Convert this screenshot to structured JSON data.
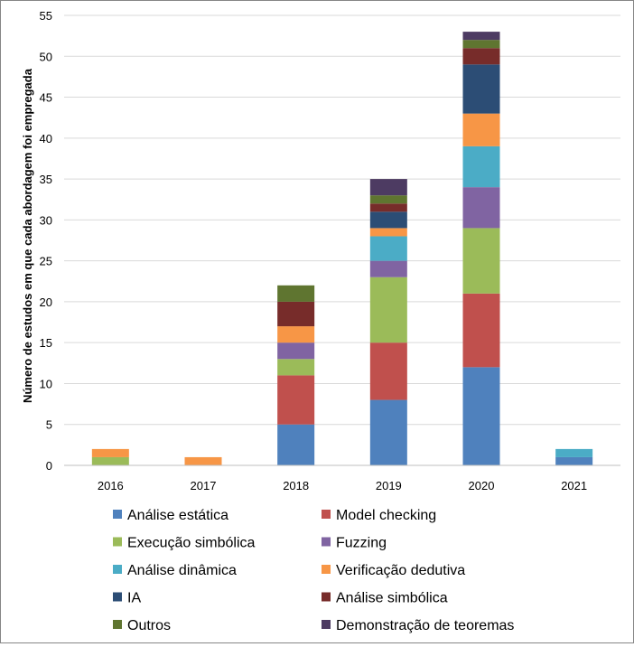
{
  "chart_data": {
    "type": "bar",
    "stacked": true,
    "title": "",
    "xlabel": "",
    "ylabel": "Número de estudos em que cada abordagem foi empregada",
    "categories": [
      "2016",
      "2017",
      "2018",
      "2019",
      "2020",
      "2021"
    ],
    "ylim": [
      0,
      55
    ],
    "yticks": [
      0,
      5,
      10,
      15,
      20,
      25,
      30,
      35,
      40,
      45,
      50,
      55
    ],
    "grid": true,
    "legend_position": "bottom",
    "series": [
      {
        "name": "Análise estática",
        "color": "#4F81BD",
        "values": [
          0,
          0,
          5,
          8,
          12,
          1
        ]
      },
      {
        "name": "Model checking",
        "color": "#C0504D",
        "values": [
          0,
          0,
          6,
          7,
          9,
          0
        ]
      },
      {
        "name": "Execução simbólica",
        "color": "#9BBB59",
        "values": [
          1,
          0,
          2,
          8,
          8,
          0
        ]
      },
      {
        "name": "Fuzzing",
        "color": "#8064A2",
        "values": [
          0,
          0,
          2,
          2,
          5,
          0
        ]
      },
      {
        "name": "Análise dinâmica",
        "color": "#4BACC6",
        "values": [
          0,
          0,
          0,
          3,
          5,
          1
        ]
      },
      {
        "name": "Verificação dedutiva",
        "color": "#F79646",
        "values": [
          1,
          1,
          2,
          1,
          4,
          0
        ]
      },
      {
        "name": "IA",
        "color": "#2C4D75",
        "values": [
          0,
          0,
          0,
          2,
          6,
          0
        ]
      },
      {
        "name": "Análise simbólica",
        "color": "#772C2A",
        "values": [
          0,
          0,
          3,
          1,
          2,
          0
        ]
      },
      {
        "name": "Outros",
        "color": "#5F7530",
        "values": [
          0,
          0,
          2,
          1,
          1,
          0
        ]
      },
      {
        "name": "Demonstração de teoremas",
        "color": "#4D3B62",
        "values": [
          0,
          0,
          0,
          2,
          1,
          0
        ]
      }
    ]
  }
}
